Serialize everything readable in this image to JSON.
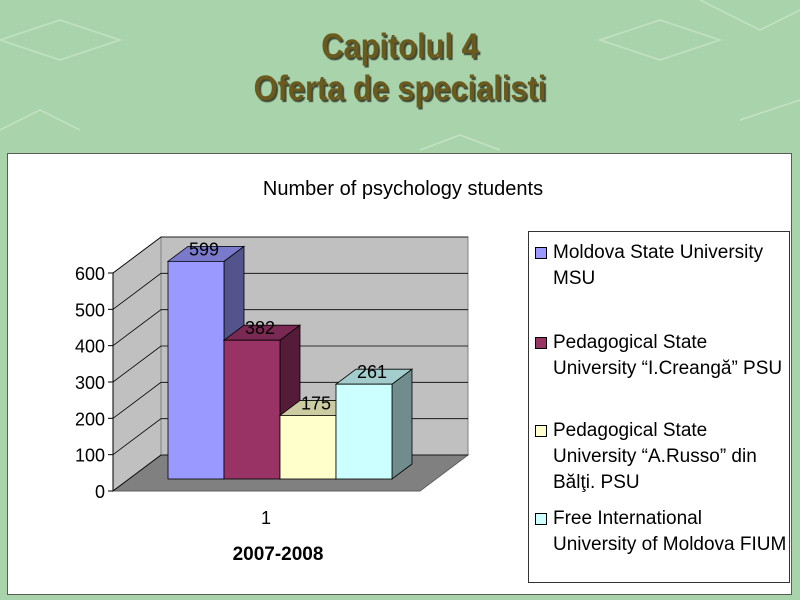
{
  "slide": {
    "title_line1": "Capitolul 4",
    "title_line2": "Oferta de specialisti"
  },
  "colors": {
    "background": "#a9d3ab",
    "title": "#6b5a1e"
  },
  "chart_data": {
    "type": "bar",
    "title": "Number of psychology students",
    "xlabel": "2007-2008",
    "ylabel": "",
    "categories": [
      "1"
    ],
    "ylim": [
      0,
      600
    ],
    "yticks": [
      0,
      100,
      200,
      300,
      400,
      500,
      600
    ],
    "grid": true,
    "legend_position": "right",
    "series": [
      {
        "name": "Moldova State University MSU",
        "values": [
          599
        ],
        "color": "#9999ff"
      },
      {
        "name": "Pedagogical State University  “I.Creangă” PSU",
        "values": [
          382
        ],
        "color": "#993366"
      },
      {
        "name": "Pedagogical State University “A.Russo” din Bălţi.  PSU",
        "values": [
          175
        ],
        "color": "#ffffcc"
      },
      {
        "name": "Free International University of Moldova FIUM",
        "values": [
          261
        ],
        "color": "#ccffff"
      }
    ]
  }
}
